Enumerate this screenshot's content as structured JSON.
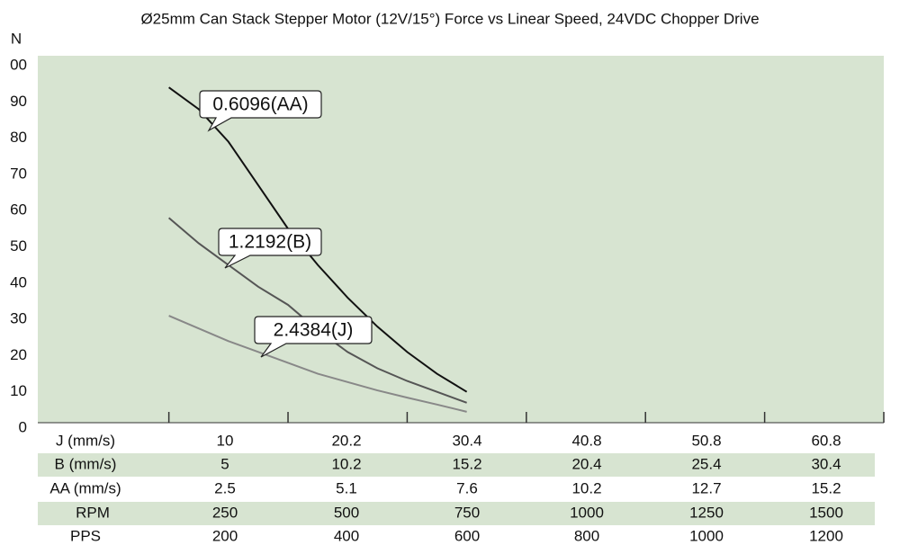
{
  "chart_data": {
    "type": "line",
    "title": "Ø25mm Can Stack Stepper Motor (12V/15°) Force vs Linear Speed, 24VDC Chopper Drive",
    "y_label": "N",
    "x": [
      125,
      187.5,
      250,
      312.5,
      375,
      437.5,
      500,
      562.5,
      625,
      687.5,
      750
    ],
    "xlim": [
      -150,
      1625
    ],
    "xticks": [
      125,
      375,
      625,
      875,
      1125,
      1375,
      1625
    ],
    "ylim": [
      0,
      100
    ],
    "yticks": [
      0,
      10,
      20,
      30,
      40,
      50,
      60,
      70,
      80,
      90,
      {
        "value": 100,
        "label": "00"
      }
    ],
    "series": [
      {
        "name": "0.6096(AA)",
        "color": "#111111",
        "values": [
          94,
          88,
          79,
          67,
          55,
          45,
          36,
          28,
          21,
          15,
          10
        ]
      },
      {
        "name": "1.2192(B)",
        "color": "#555555",
        "values": [
          58,
          51,
          45,
          39,
          34,
          27,
          21,
          16.5,
          13,
          10,
          7
        ]
      },
      {
        "name": "2.4384(J)",
        "color": "#888888",
        "values": [
          31,
          27.5,
          24,
          21,
          18,
          15,
          12.7,
          10.4,
          8.4,
          6.5,
          4.5
        ]
      }
    ],
    "table": {
      "rows": [
        {
          "label": "J (mm/s)",
          "values": [
            10,
            20.2,
            30.4,
            40.8,
            50.8,
            60.8
          ]
        },
        {
          "label": "B (mm/s)",
          "values": [
            5,
            10.2,
            15.2,
            20.4,
            25.4,
            30.4
          ]
        },
        {
          "label": "AA (mm/s)",
          "values": [
            2.5,
            5.1,
            7.6,
            10.2,
            12.7,
            15.2
          ]
        },
        {
          "label": "RPM",
          "values": [
            250,
            500,
            750,
            1000,
            1250,
            1500
          ]
        },
        {
          "label": "PPS",
          "values": [
            200,
            400,
            600,
            800,
            1000,
            1200
          ]
        }
      ]
    }
  }
}
